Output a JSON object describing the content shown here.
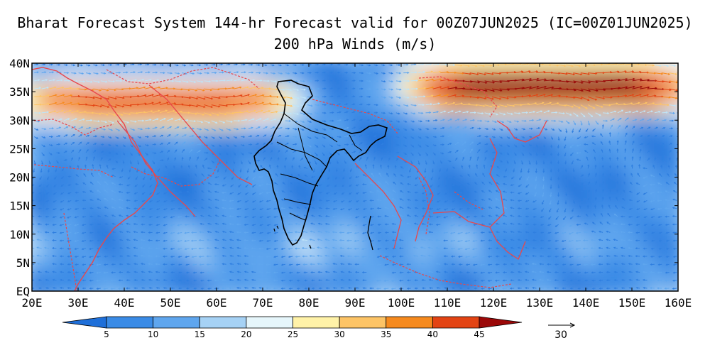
{
  "title_line1": "Bharat Forecast System 144-hr Forecast valid for 00Z07JUN2025 (IC=00Z01JUN2025)",
  "title_line2": "200 hPa Winds (m/s)",
  "map": {
    "lon_range": [
      20,
      160
    ],
    "lat_range": [
      0,
      40
    ],
    "lon_ticks": [
      "20E",
      "30E",
      "40E",
      "50E",
      "60E",
      "70E",
      "80E",
      "90E",
      "100E",
      "110E",
      "120E",
      "130E",
      "140E",
      "150E",
      "160E"
    ],
    "lat_ticks": [
      "EQ",
      "5N",
      "10N",
      "15N",
      "20N",
      "25N",
      "30N",
      "35N",
      "40N"
    ],
    "field": "200 hPa wind vectors shaded by speed",
    "jet_streams": [
      {
        "region": "subtropical westerly jet over Arabia/Iran",
        "lon_range": [
          20,
          75
        ],
        "lat_range": [
          30,
          37
        ],
        "max_speed_ms": 42
      },
      {
        "region": "westerly jet over China/Japan",
        "lon_range": [
          105,
          160
        ],
        "lat_range": [
          32,
          40
        ],
        "max_speed_ms": 50
      }
    ]
  },
  "colorbar": {
    "ticks": [
      "5",
      "10",
      "15",
      "20",
      "25",
      "30",
      "35",
      "40",
      "45"
    ],
    "colors": [
      "#1e6fd9",
      "#3a8be6",
      "#5fa6ee",
      "#a6d2f5",
      "#e6f6fb",
      "#fff2a8",
      "#fdc466",
      "#f68a1e",
      "#e34414",
      "#9b0808"
    ]
  },
  "reference_vector": {
    "label": "30"
  }
}
